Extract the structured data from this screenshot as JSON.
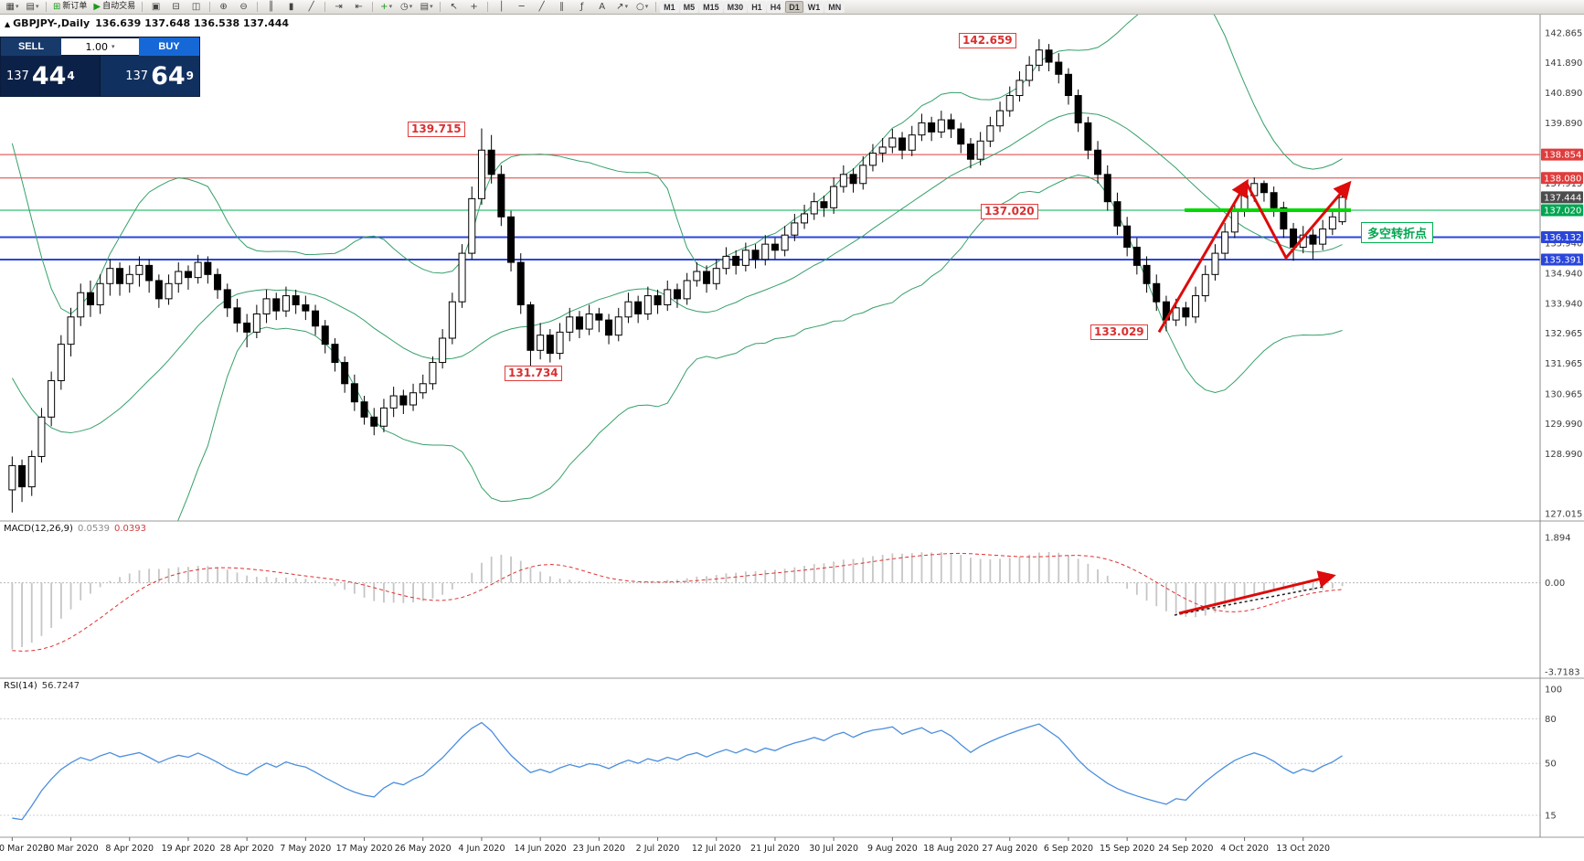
{
  "header": {
    "symbol_timeframe": "GBPJPY-,Daily",
    "ohlc": "136.639 137.648 136.538 137.444"
  },
  "trade_panel": {
    "sell_label": "SELL",
    "buy_label": "BUY",
    "volume": "1.00",
    "sell_price": {
      "small": "137",
      "big": "44",
      "sup": "4"
    },
    "buy_price": {
      "small": "137",
      "big": "64",
      "sup": "9"
    }
  },
  "annotations": {
    "peak_aug": "142.659",
    "peak_jun": "139.715",
    "pivot": "137.020",
    "low_jun": "131.734",
    "low_sep": "133.029",
    "turning_point": "多空转折点"
  },
  "toolbar": {
    "items": [
      {
        "name": "new-chart",
        "glyph": "▦",
        "caret": true
      },
      {
        "name": "profiles",
        "glyph": "▤",
        "caret": true
      },
      {
        "sep": true
      },
      {
        "name": "new-order",
        "glyph": "⊞",
        "glyph_color": "#1a9a1a",
        "label": "新订单"
      },
      {
        "name": "auto-trading",
        "glyph": "▶",
        "glyph_color": "#1a9a1a",
        "label": "自动交易"
      },
      {
        "sep": true
      },
      {
        "name": "window-cascade",
        "glyph": "▣"
      },
      {
        "name": "window-tile-horizontal",
        "glyph": "⊟"
      },
      {
        "name": "window-tile-vertical",
        "glyph": "◫"
      },
      {
        "sep": true
      },
      {
        "name": "zoom-in",
        "glyph": "⊕"
      },
      {
        "name": "zoom-out",
        "glyph": "⊖"
      },
      {
        "sep": true
      },
      {
        "name": "chart-bars",
        "glyph": "║"
      },
      {
        "name": "chart-candlesticks",
        "glyph": "▮"
      },
      {
        "name": "chart-line",
        "glyph": "╱"
      },
      {
        "sep": true
      },
      {
        "name": "auto-scroll",
        "glyph": "⇥"
      },
      {
        "name": "chart-shift",
        "glyph": "⇤"
      },
      {
        "sep": true
      },
      {
        "name": "indicators",
        "glyph": "+",
        "glyph_color": "#1a9a1a",
        "caret": true
      },
      {
        "name": "periods",
        "glyph": "◷",
        "caret": true
      },
      {
        "name": "templates",
        "glyph": "▤",
        "caret": true
      },
      {
        "sep": true
      },
      {
        "name": "cursor",
        "glyph": "↖"
      },
      {
        "name": "crosshair",
        "glyph": "+"
      },
      {
        "sep": true
      },
      {
        "name": "draw-vertical-line",
        "glyph": "│"
      },
      {
        "name": "draw-horizontal-line",
        "glyph": "─"
      },
      {
        "name": "draw-trendline",
        "glyph": "╱"
      },
      {
        "name": "draw-channel",
        "glyph": "∥"
      },
      {
        "name": "draw-fibonacci",
        "glyph": "ƒ"
      },
      {
        "name": "draw-text",
        "glyph": "A"
      },
      {
        "name": "draw-arrows",
        "glyph": "↗",
        "caret": true
      },
      {
        "name": "draw-shapes",
        "glyph": "○",
        "caret": true
      },
      {
        "sep": true
      },
      {
        "name": "tf-m1",
        "tf": "M1"
      },
      {
        "name": "tf-m5",
        "tf": "M5"
      },
      {
        "name": "tf-m15",
        "tf": "M15"
      },
      {
        "name": "tf-m30",
        "tf": "M30"
      },
      {
        "name": "tf-h1",
        "tf": "H1"
      },
      {
        "name": "tf-h4",
        "tf": "H4"
      },
      {
        "name": "tf-d1",
        "tf": "D1",
        "active": true
      },
      {
        "name": "tf-w1",
        "tf": "W1"
      },
      {
        "name": "tf-mn",
        "tf": "MN"
      }
    ]
  },
  "chart_data": {
    "type": "candlestick",
    "symbol": "GBPJPY-",
    "timeframe": "Daily",
    "bars_per_label": 6,
    "dates": [
      "20 Mar 2020",
      "30 Mar 2020",
      "8 Apr 2020",
      "19 Apr 2020",
      "28 Apr 2020",
      "7 May 2020",
      "17 May 2020",
      "26 May 2020",
      "4 Jun 2020",
      "14 Jun 2020",
      "23 Jun 2020",
      "2 Jul 2020",
      "12 Jul 2020",
      "21 Jul 2020",
      "30 Jul 2020",
      "9 Aug 2020",
      "18 Aug 2020",
      "27 Aug 2020",
      "6 Sep 2020",
      "15 Sep 2020",
      "24 Sep 2020",
      "4 Oct 2020",
      "13 Oct 2020"
    ],
    "pre_closes": [
      139.5,
      139.0,
      138.3,
      137.4,
      136.4,
      135.3,
      134.2,
      133.1,
      132.1,
      131.2,
      130.4,
      129.7,
      129.1,
      128.6,
      128.2,
      127.9,
      127.7,
      127.5,
      127.4,
      127.6
    ],
    "candles": [
      [
        127.8,
        128.9,
        127.05,
        128.6
      ],
      [
        128.6,
        128.8,
        127.4,
        127.9
      ],
      [
        127.9,
        129.1,
        127.6,
        128.9
      ],
      [
        128.9,
        130.5,
        128.7,
        130.2
      ],
      [
        130.2,
        131.7,
        129.9,
        131.4
      ],
      [
        131.4,
        132.9,
        131.1,
        132.6
      ],
      [
        132.6,
        133.8,
        132.2,
        133.5
      ],
      [
        133.5,
        134.6,
        133.2,
        134.3
      ],
      [
        134.3,
        134.7,
        133.5,
        133.9
      ],
      [
        133.9,
        134.9,
        133.6,
        134.6
      ],
      [
        134.6,
        135.4,
        134.2,
        135.1
      ],
      [
        135.1,
        135.3,
        134.2,
        134.6
      ],
      [
        134.6,
        135.2,
        134.3,
        134.9
      ],
      [
        134.9,
        135.5,
        134.5,
        135.2
      ],
      [
        135.2,
        135.4,
        134.3,
        134.7
      ],
      [
        134.7,
        134.9,
        133.8,
        134.1
      ],
      [
        134.1,
        134.9,
        133.9,
        134.6
      ],
      [
        134.6,
        135.3,
        134.3,
        135.0
      ],
      [
        135.0,
        135.2,
        134.4,
        134.8
      ],
      [
        134.8,
        135.55,
        134.6,
        135.3
      ],
      [
        135.3,
        135.5,
        134.6,
        134.9
      ],
      [
        134.9,
        135.1,
        134.1,
        134.4
      ],
      [
        134.4,
        134.6,
        133.5,
        133.8
      ],
      [
        133.8,
        134.1,
        133.0,
        133.3
      ],
      [
        133.3,
        133.6,
        132.5,
        133.0
      ],
      [
        133.0,
        133.9,
        132.8,
        133.6
      ],
      [
        133.6,
        134.4,
        133.3,
        134.1
      ],
      [
        134.1,
        134.3,
        133.4,
        133.7
      ],
      [
        133.7,
        134.5,
        133.5,
        134.2
      ],
      [
        134.2,
        134.4,
        133.6,
        133.9
      ],
      [
        133.9,
        134.2,
        133.4,
        133.7
      ],
      [
        133.7,
        133.9,
        132.9,
        133.2
      ],
      [
        133.2,
        133.4,
        132.3,
        132.6
      ],
      [
        132.6,
        132.8,
        131.7,
        132.0
      ],
      [
        132.0,
        132.2,
        131.0,
        131.3
      ],
      [
        131.3,
        131.6,
        130.4,
        130.7
      ],
      [
        130.7,
        130.9,
        129.95,
        130.2
      ],
      [
        130.2,
        130.5,
        129.6,
        129.9
      ],
      [
        129.9,
        130.8,
        129.7,
        130.5
      ],
      [
        130.5,
        131.2,
        130.2,
        130.9
      ],
      [
        130.9,
        131.1,
        130.3,
        130.6
      ],
      [
        130.6,
        131.3,
        130.4,
        131.0
      ],
      [
        131.0,
        131.6,
        130.8,
        131.3
      ],
      [
        131.3,
        132.2,
        131.1,
        132.0
      ],
      [
        132.0,
        133.1,
        131.8,
        132.8
      ],
      [
        132.8,
        134.3,
        132.6,
        134.0
      ],
      [
        134.0,
        135.9,
        133.8,
        135.6
      ],
      [
        135.6,
        137.8,
        135.4,
        137.4
      ],
      [
        137.4,
        139.715,
        137.2,
        139.0
      ],
      [
        139.0,
        139.5,
        137.9,
        138.2
      ],
      [
        138.2,
        138.5,
        136.5,
        136.8
      ],
      [
        136.8,
        137.0,
        135.0,
        135.3
      ],
      [
        135.3,
        135.6,
        133.6,
        133.9
      ],
      [
        133.9,
        134.0,
        131.734,
        132.4
      ],
      [
        132.4,
        133.3,
        132.1,
        132.9
      ],
      [
        132.9,
        133.1,
        132.0,
        132.3
      ],
      [
        132.3,
        133.3,
        132.1,
        133.0
      ],
      [
        133.0,
        133.8,
        132.7,
        133.5
      ],
      [
        133.5,
        133.7,
        132.8,
        133.1
      ],
      [
        133.1,
        133.9,
        132.9,
        133.6
      ],
      [
        133.6,
        133.8,
        133.0,
        133.4
      ],
      [
        133.4,
        133.6,
        132.6,
        132.9
      ],
      [
        132.9,
        133.8,
        132.7,
        133.5
      ],
      [
        133.5,
        134.3,
        133.3,
        134.0
      ],
      [
        134.0,
        134.2,
        133.3,
        133.6
      ],
      [
        133.6,
        134.5,
        133.4,
        134.2
      ],
      [
        134.2,
        134.4,
        133.6,
        133.9
      ],
      [
        133.9,
        134.7,
        133.7,
        134.4
      ],
      [
        134.4,
        134.6,
        133.8,
        134.1
      ],
      [
        134.1,
        134.95,
        133.9,
        134.7
      ],
      [
        134.7,
        135.3,
        134.5,
        135.0
      ],
      [
        135.0,
        135.2,
        134.3,
        134.6
      ],
      [
        134.6,
        135.4,
        134.4,
        135.1
      ],
      [
        135.1,
        135.8,
        134.9,
        135.5
      ],
      [
        135.5,
        135.7,
        134.9,
        135.2
      ],
      [
        135.2,
        135.95,
        135.0,
        135.7
      ],
      [
        135.7,
        135.9,
        135.1,
        135.4
      ],
      [
        135.4,
        136.2,
        135.2,
        135.9
      ],
      [
        135.9,
        136.1,
        135.4,
        135.7
      ],
      [
        135.7,
        136.5,
        135.5,
        136.2
      ],
      [
        136.2,
        136.9,
        136.0,
        136.6
      ],
      [
        136.6,
        137.2,
        136.4,
        136.9
      ],
      [
        136.9,
        137.6,
        136.7,
        137.3
      ],
      [
        137.3,
        137.5,
        136.8,
        137.1
      ],
      [
        137.1,
        138.1,
        136.9,
        137.8
      ],
      [
        137.8,
        138.5,
        137.6,
        138.2
      ],
      [
        138.2,
        138.4,
        137.6,
        137.9
      ],
      [
        137.9,
        138.8,
        137.7,
        138.5
      ],
      [
        138.5,
        139.2,
        138.3,
        138.9
      ],
      [
        138.9,
        139.4,
        138.6,
        139.1
      ],
      [
        139.1,
        139.7,
        138.9,
        139.4
      ],
      [
        139.4,
        139.6,
        138.7,
        139.0
      ],
      [
        139.0,
        139.8,
        138.8,
        139.5
      ],
      [
        139.5,
        140.2,
        139.3,
        139.9
      ],
      [
        139.9,
        140.1,
        139.3,
        139.6
      ],
      [
        139.6,
        140.3,
        139.4,
        140.0
      ],
      [
        140.0,
        140.2,
        139.4,
        139.7
      ],
      [
        139.7,
        139.9,
        138.9,
        139.2
      ],
      [
        139.2,
        139.4,
        138.4,
        138.7
      ],
      [
        138.7,
        139.6,
        138.5,
        139.3
      ],
      [
        139.3,
        140.1,
        139.1,
        139.8
      ],
      [
        139.8,
        140.6,
        139.6,
        140.3
      ],
      [
        140.3,
        141.1,
        140.1,
        140.8
      ],
      [
        140.8,
        141.6,
        140.6,
        141.3
      ],
      [
        141.3,
        142.1,
        141.1,
        141.8
      ],
      [
        141.8,
        142.659,
        141.6,
        142.3
      ],
      [
        142.3,
        142.5,
        141.6,
        141.9
      ],
      [
        141.9,
        142.2,
        141.2,
        141.5
      ],
      [
        141.5,
        141.7,
        140.5,
        140.8
      ],
      [
        140.8,
        141.0,
        139.6,
        139.9
      ],
      [
        139.9,
        140.1,
        138.7,
        139.0
      ],
      [
        139.0,
        139.3,
        137.9,
        138.2
      ],
      [
        138.2,
        138.5,
        137.0,
        137.3
      ],
      [
        137.3,
        137.6,
        136.2,
        136.5
      ],
      [
        136.5,
        136.8,
        135.5,
        135.8
      ],
      [
        135.8,
        136.1,
        134.9,
        135.2
      ],
      [
        135.2,
        135.5,
        134.3,
        134.6
      ],
      [
        134.6,
        134.9,
        133.7,
        134.0
      ],
      [
        134.0,
        134.2,
        133.029,
        133.4
      ],
      [
        133.4,
        134.1,
        133.2,
        133.8
      ],
      [
        133.8,
        134.0,
        133.2,
        133.5
      ],
      [
        133.5,
        134.5,
        133.3,
        134.2
      ],
      [
        134.2,
        135.2,
        134.0,
        134.9
      ],
      [
        134.9,
        135.9,
        134.7,
        135.6
      ],
      [
        135.6,
        136.6,
        135.4,
        136.3
      ],
      [
        136.3,
        137.3,
        136.1,
        137.0
      ],
      [
        137.0,
        137.8,
        136.8,
        137.5
      ],
      [
        137.5,
        138.1,
        137.3,
        137.9
      ],
      [
        137.9,
        138.0,
        137.3,
        137.6
      ],
      [
        137.6,
        137.8,
        136.8,
        137.1
      ],
      [
        137.1,
        137.3,
        136.1,
        136.4
      ],
      [
        136.4,
        136.6,
        135.35,
        135.8
      ],
      [
        135.8,
        136.5,
        135.6,
        136.2
      ],
      [
        136.2,
        136.4,
        135.4,
        135.9
      ],
      [
        135.9,
        136.7,
        135.7,
        136.4
      ],
      [
        136.4,
        137.0,
        136.2,
        136.8
      ],
      [
        136.639,
        137.648,
        136.538,
        137.444
      ]
    ],
    "levels": [
      {
        "price": 138.854,
        "color": "#e03c3c",
        "width": 1
      },
      {
        "price": 138.08,
        "color": "#e03c3c",
        "width": 1
      },
      {
        "price": 137.02,
        "color": "#00b050",
        "width": 1
      },
      {
        "price": 136.132,
        "color": "#2b46d9",
        "width": 2
      },
      {
        "price": 135.391,
        "color": "#2b46d9",
        "width": 2
      }
    ],
    "price_axis": {
      "plain": [
        "142.865",
        "141.890",
        "140.890",
        "139.890",
        "137.915",
        "135.940",
        "134.940",
        "133.940",
        "132.965",
        "131.965",
        "130.965",
        "129.990",
        "128.990",
        "127.015"
      ],
      "badges": [
        {
          "value": "138.854",
          "color": "#e03c3c"
        },
        {
          "value": "138.080",
          "color": "#e03c3c"
        },
        {
          "value": "137.444",
          "color": "#4d4d4d"
        },
        {
          "value": "137.020",
          "color": "#00a651"
        },
        {
          "value": "136.132",
          "color": "#2b46d9"
        },
        {
          "value": "135.391",
          "color": "#2b46d9"
        }
      ]
    },
    "indicators": {
      "bollinger": {
        "period": 20,
        "deviation": 2,
        "color": "#35a06a"
      },
      "macd": {
        "label": "MACD(12,26,9)",
        "value": "0.0539",
        "signal": "0.0393",
        "axis": [
          "1.894",
          "0.00",
          "-3.7183"
        ]
      },
      "rsi": {
        "label": "RSI(14)",
        "value": "56.7247",
        "axis": [
          "100",
          "80",
          "50",
          "15"
        ],
        "levels": [
          80,
          50,
          15
        ]
      }
    }
  }
}
